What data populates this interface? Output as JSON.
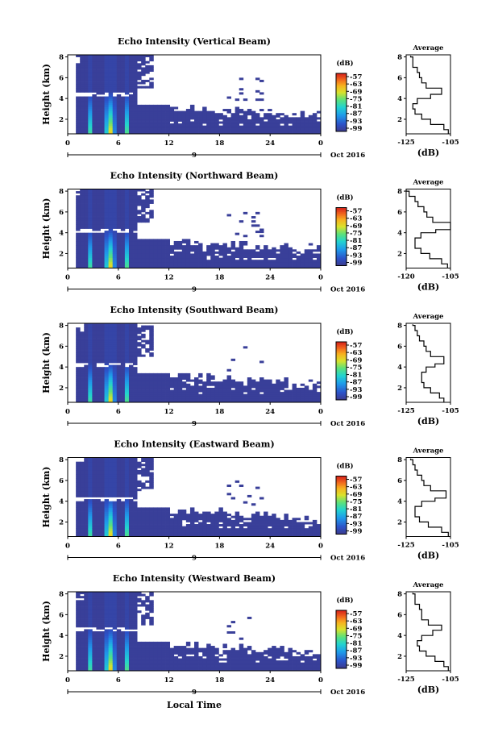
{
  "figure": {
    "xlabel": "Local Time",
    "date_label": "Oct 2016",
    "day_label": "9",
    "colorbar_unit": "(dB)",
    "colorbar_ticks": [
      "-57",
      "-63",
      "-69",
      "-75",
      "-81",
      "-87",
      "-93",
      "-99"
    ],
    "avg_title": "Average",
    "avg_xlabel": "(dB)"
  },
  "chart_data": [
    {
      "type": "heatmap",
      "title": "Echo Intensity (Vertical Beam)",
      "ylabel": "Height (km)",
      "x_ticks": [
        "0",
        "6",
        "12",
        "18",
        "24",
        "0"
      ],
      "y_ticks": [
        "2",
        "4",
        "6",
        "8"
      ],
      "xlim": [
        0,
        30
      ],
      "ylim": [
        0.6,
        8.2
      ],
      "color_range_db": [
        -99,
        -57
      ],
      "strong_echo_columns_hours": [
        2.7,
        5.0,
        7.0
      ],
      "echo_layer_top_km": 4.4,
      "average_profile": {
        "xlim": [
          -125,
          -105
        ],
        "x_ticks": [
          "-125",
          "-105"
        ],
        "y_ticks": [
          "2",
          "4",
          "6",
          "8"
        ],
        "height_km": [
          0.6,
          1.0,
          1.5,
          2.0,
          2.5,
          3.0,
          3.5,
          4.0,
          4.4,
          5.0,
          5.5,
          6.0,
          6.5,
          7.0,
          7.5,
          8.0
        ],
        "db": [
          -106,
          -108,
          -114,
          -118,
          -121,
          -122,
          -120,
          -114,
          -109,
          -116,
          -118,
          -119,
          -120,
          -122,
          -122,
          -123
        ]
      }
    },
    {
      "type": "heatmap",
      "title": "Echo Intensity (Northward Beam)",
      "ylabel": "Height (km)",
      "x_ticks": [
        "0",
        "6",
        "12",
        "18",
        "24",
        "0"
      ],
      "y_ticks": [
        "2",
        "4",
        "6",
        "8"
      ],
      "xlim": [
        0,
        30
      ],
      "ylim": [
        0.6,
        8.2
      ],
      "color_range_db": [
        -99,
        -57
      ],
      "strong_echo_columns_hours": [
        2.7,
        5.0,
        7.0
      ],
      "echo_layer_top_km": 4.2,
      "average_profile": {
        "xlim": [
          -120,
          -105
        ],
        "x_ticks": [
          "-120",
          "-105"
        ],
        "y_ticks": [
          "2",
          "4",
          "6",
          "8"
        ],
        "height_km": [
          0.6,
          1.0,
          1.5,
          2.0,
          2.5,
          3.0,
          3.5,
          4.0,
          4.3,
          5.0,
          5.5,
          6.0,
          6.5,
          7.0,
          7.5,
          8.0
        ],
        "db": [
          -106,
          -108,
          -112,
          -115,
          -117,
          -117,
          -115,
          -110,
          -105,
          -111,
          -113,
          -114,
          -116,
          -117,
          -119,
          -120
        ]
      }
    },
    {
      "type": "heatmap",
      "title": "Echo Intensity (Southward Beam)",
      "ylabel": "Height (km)",
      "x_ticks": [
        "0",
        "6",
        "12",
        "18",
        "24",
        "0"
      ],
      "y_ticks": [
        "2",
        "4",
        "6",
        "8"
      ],
      "xlim": [
        0,
        30
      ],
      "ylim": [
        0.6,
        8.2
      ],
      "color_range_db": [
        -99,
        -57
      ],
      "strong_echo_columns_hours": [
        2.7,
        5.0,
        7.0
      ],
      "echo_layer_top_km": 4.2,
      "average_profile": {
        "xlim": [
          -125,
          -105
        ],
        "x_ticks": [
          "-125",
          "-105"
        ],
        "y_ticks": [
          "2",
          "4",
          "6",
          "8"
        ],
        "height_km": [
          0.6,
          1.0,
          1.5,
          2.0,
          2.5,
          3.0,
          3.5,
          4.0,
          4.3,
          5.0,
          5.5,
          6.0,
          6.5,
          7.0,
          7.5,
          8.0
        ],
        "db": [
          -108,
          -110,
          -114,
          -117,
          -118,
          -118,
          -116,
          -112,
          -108,
          -114,
          -116,
          -117,
          -119,
          -120,
          -121,
          -122
        ]
      }
    },
    {
      "type": "heatmap",
      "title": "Echo Intensity (Eastward Beam)",
      "ylabel": "Height (km)",
      "x_ticks": [
        "0",
        "6",
        "12",
        "18",
        "24",
        "0"
      ],
      "y_ticks": [
        "2",
        "4",
        "6",
        "8"
      ],
      "xlim": [
        0,
        30
      ],
      "ylim": [
        0.6,
        8.2
      ],
      "color_range_db": [
        -99,
        -57
      ],
      "strong_echo_columns_hours": [
        2.7,
        5.0,
        7.0
      ],
      "echo_layer_top_km": 4.2,
      "average_profile": {
        "xlim": [
          -125,
          -105
        ],
        "x_ticks": [
          "-125",
          "-105"
        ],
        "y_ticks": [
          "2",
          "4",
          "6",
          "8"
        ],
        "height_km": [
          0.6,
          1.0,
          1.5,
          2.0,
          2.5,
          3.0,
          3.5,
          4.0,
          4.3,
          5.0,
          5.5,
          6.0,
          6.5,
          7.0,
          7.5,
          8.0
        ],
        "db": [
          -106,
          -109,
          -115,
          -119,
          -121,
          -121,
          -118,
          -112,
          -107,
          -114,
          -117,
          -118,
          -120,
          -121,
          -122,
          -123
        ]
      }
    },
    {
      "type": "heatmap",
      "title": "Echo Intensity (Westward Beam)",
      "ylabel": "Height (km)",
      "x_ticks": [
        "0",
        "6",
        "12",
        "18",
        "24",
        "0"
      ],
      "y_ticks": [
        "2",
        "4",
        "6",
        "8"
      ],
      "xlim": [
        0,
        30
      ],
      "ylim": [
        0.6,
        8.2
      ],
      "color_range_db": [
        -99,
        -57
      ],
      "strong_echo_columns_hours": [
        2.7,
        5.0,
        7.0
      ],
      "echo_layer_top_km": 4.6,
      "average_profile": {
        "xlim": [
          -125,
          -105
        ],
        "x_ticks": [
          "-125",
          "-105"
        ],
        "y_ticks": [
          "2",
          "4",
          "6",
          "8"
        ],
        "height_km": [
          0.6,
          1.0,
          1.5,
          2.0,
          2.5,
          3.0,
          3.5,
          4.0,
          4.5,
          5.0,
          5.5,
          6.0,
          6.5,
          7.0,
          7.5,
          8.0
        ],
        "db": [
          -106,
          -108,
          -112,
          -116,
          -119,
          -120,
          -118,
          -113,
          -109,
          -115,
          -118,
          -118,
          -119,
          -121,
          -121,
          -122
        ]
      }
    }
  ]
}
